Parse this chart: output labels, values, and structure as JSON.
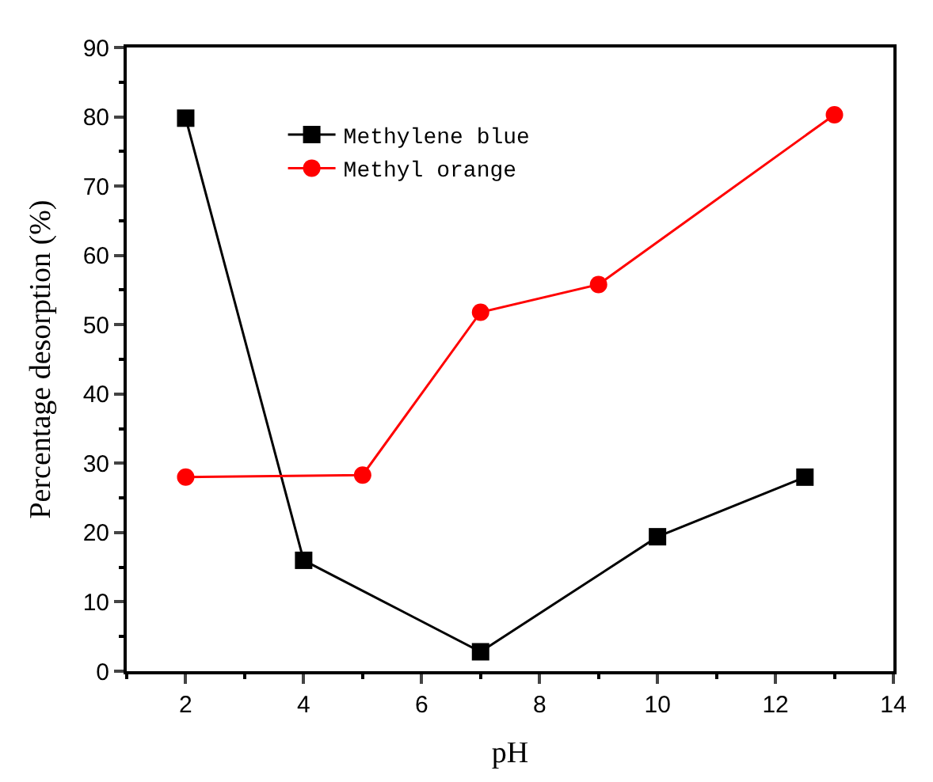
{
  "chart_data": {
    "type": "line",
    "xlabel": "pH",
    "ylabel": "Percentage desorption (%)",
    "xlim": [
      1,
      14
    ],
    "xticks": [
      2,
      4,
      6,
      8,
      10,
      12,
      14
    ],
    "ylim": [
      0,
      90
    ],
    "yticks": [
      0,
      10,
      20,
      30,
      40,
      50,
      60,
      70,
      80,
      90
    ],
    "legend": "top left",
    "series": [
      {
        "name": "Methylene blue",
        "color": "#000000",
        "marker": "square",
        "x": [
          2,
          4,
          7,
          10,
          12.5
        ],
        "values": [
          79.8,
          16,
          2.8,
          19.4,
          28
        ]
      },
      {
        "name": "Methyl orange",
        "color": "#ff0000",
        "marker": "circle",
        "x": [
          2,
          5,
          7,
          9,
          13
        ],
        "values": [
          28,
          28.3,
          51.8,
          55.8,
          80.3
        ]
      }
    ]
  }
}
